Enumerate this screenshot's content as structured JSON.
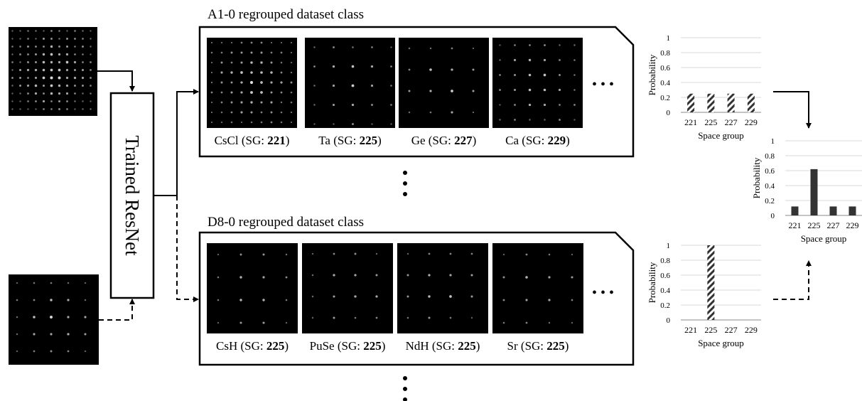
{
  "network": {
    "label": "Trained ResNet"
  },
  "classes": [
    {
      "title": "A1-0 regrouped dataset class",
      "samples": [
        {
          "name": "CsCl",
          "sg": "221"
        },
        {
          "name": "Ta",
          "sg": "225"
        },
        {
          "name": "Ge",
          "sg": "227"
        },
        {
          "name": "Ca",
          "sg": "229"
        }
      ]
    },
    {
      "title": "D8-0 regrouped dataset class",
      "samples": [
        {
          "name": "CsH",
          "sg": "225"
        },
        {
          "name": "PuSe",
          "sg": "225"
        },
        {
          "name": "NdH",
          "sg": "225"
        },
        {
          "name": "Sr",
          "sg": "225"
        }
      ]
    }
  ],
  "labels": {
    "sg_prefix": "(SG: ",
    "sg_suffix": ")",
    "ellipsis": "• • •"
  },
  "chart_data": [
    {
      "type": "bar",
      "categories": [
        "221",
        "225",
        "227",
        "229"
      ],
      "values": [
        0.25,
        0.25,
        0.25,
        0.25
      ],
      "xlabel": "Space group",
      "ylabel": "Probability",
      "yticks": [
        "0",
        "0.2",
        "0.4",
        "0.6",
        "0.8",
        "1"
      ],
      "ylim": [
        0,
        1
      ],
      "fill": "hatched"
    },
    {
      "type": "bar",
      "categories": [
        "221",
        "225",
        "227",
        "229"
      ],
      "values": [
        0.12,
        0.62,
        0.12,
        0.12
      ],
      "xlabel": "Space group",
      "ylabel": "Probability",
      "yticks": [
        "0",
        "0.2",
        "0.4",
        "0.6",
        "0.8",
        "1"
      ],
      "ylim": [
        0,
        1
      ],
      "fill": "solid"
    },
    {
      "type": "bar",
      "categories": [
        "221",
        "225",
        "227",
        "229"
      ],
      "values": [
        0,
        1,
        0,
        0
      ],
      "xlabel": "Space group",
      "ylabel": "Probability",
      "yticks": [
        "0",
        "0.2",
        "0.4",
        "0.6",
        "0.8",
        "1"
      ],
      "ylim": [
        0,
        1
      ],
      "fill": "hatched"
    }
  ],
  "colors": {
    "line": "#000000",
    "bar_solid": "#333333",
    "grid": "#d9d9d9",
    "image_bg": "#000000"
  }
}
